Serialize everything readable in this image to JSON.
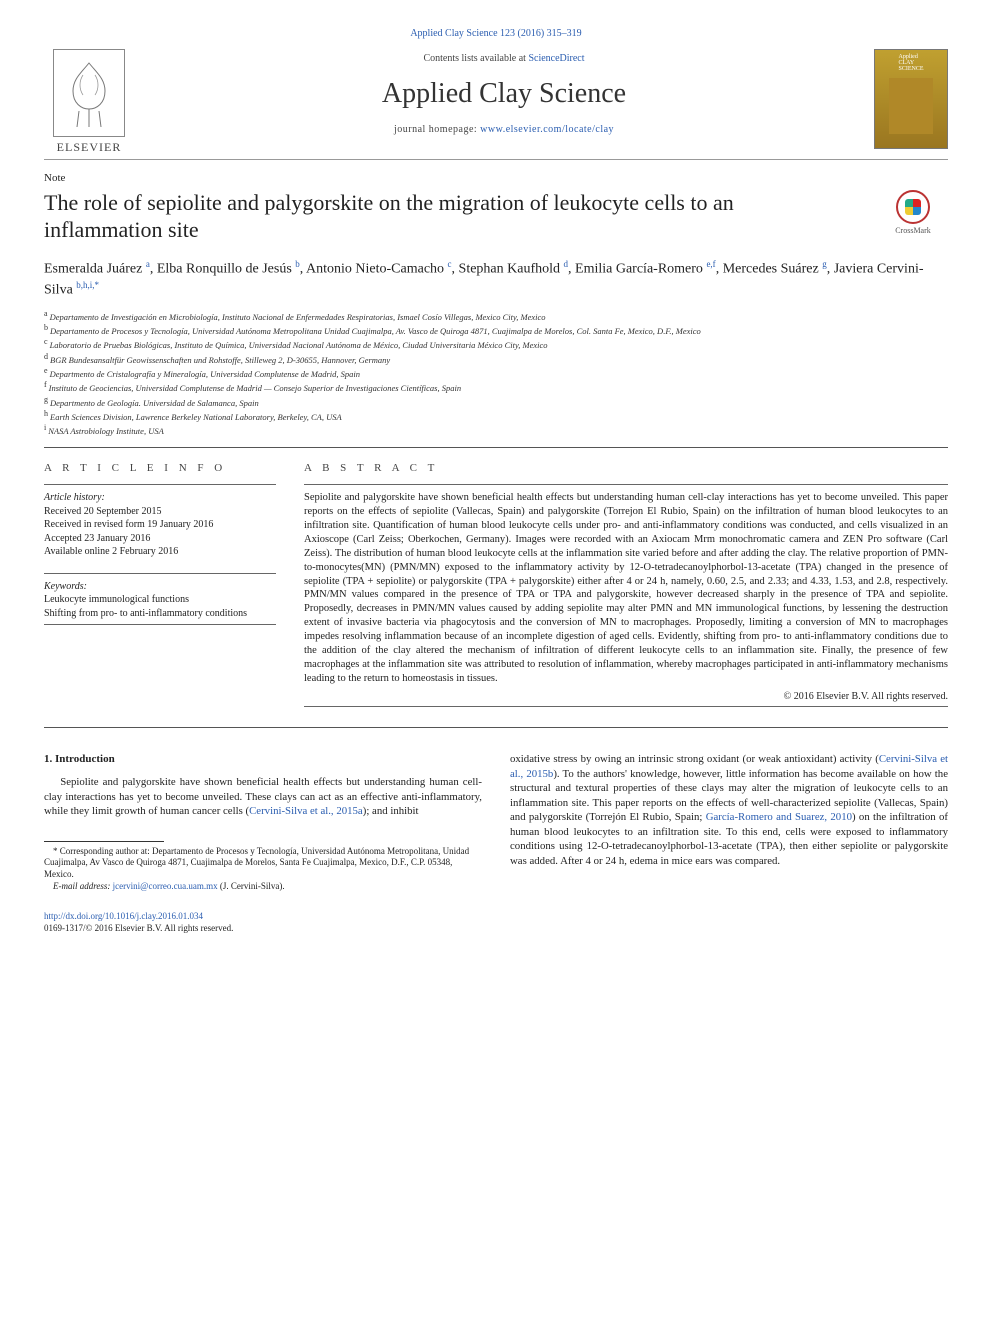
{
  "header": {
    "citation": "Applied Clay Science 123 (2016) 315–319",
    "contents_prefix": "Contents lists available at ",
    "contents_link": "ScienceDirect",
    "journal_title": "Applied Clay Science",
    "homepage_prefix": "journal homepage: ",
    "homepage_url": "www.elsevier.com/locate/clay",
    "elsevier_word": "ELSEVIER",
    "crossmark": "CrossMark"
  },
  "note_label": "Note",
  "title": "The role of sepiolite and palygorskite on the migration of leukocyte cells to an inflammation site",
  "authors_html": "Esmeralda Juárez <sup>a</sup>, Elba Ronquillo de Jesús <sup>b</sup>, Antonio Nieto-Camacho <sup>c</sup>, Stephan Kaufhold <sup>d</sup>, Emilia García-Romero <sup>e,f</sup>, Mercedes Suárez <sup>g</sup>, Javiera Cervini-Silva <sup>b,h,i,*</sup>",
  "affiliations": [
    {
      "sup": "a",
      "text": "Departamento de Investigación en Microbiología, Instituto Nacional de Enfermedades Respiratorias, Ismael Cosío Villegas, Mexico City, Mexico"
    },
    {
      "sup": "b",
      "text": "Departamento de Procesos y Tecnología, Universidad Autónoma Metropolitana Unidad Cuajimalpa, Av. Vasco de Quiroga 4871, Cuajimalpa de Morelos, Col. Santa Fe, Mexico, D.F., Mexico"
    },
    {
      "sup": "c",
      "text": "Laboratorio de Pruebas Biológicas, Instituto de Química, Universidad Nacional Autónoma de México, Ciudad Universitaria México City, Mexico"
    },
    {
      "sup": "d",
      "text": "BGR Bundesansaltfür Geowissenschaften und Rohstoffe, Stilleweg 2, D-30655, Hannover, Germany"
    },
    {
      "sup": "e",
      "text": "Departmento de Cristalografía y Mineralogía, Universidad Complutense de Madrid, Spain"
    },
    {
      "sup": "f",
      "text": "Instituto de Geociencias, Universidad Complutense de Madrid — Consejo Superior de Investigaciones Científicas, Spain"
    },
    {
      "sup": "g",
      "text": "Departmento de Geología. Universidad de Salamanca, Spain"
    },
    {
      "sup": "h",
      "text": "Earth Sciences Division, Lawrence Berkeley National Laboratory, Berkeley, CA, USA"
    },
    {
      "sup": "i",
      "text": "NASA Astrobiology Institute, USA"
    }
  ],
  "info": {
    "heading": "A R T I C L E   I N F O",
    "history_h": "Article history:",
    "history": [
      "Received 20 September 2015",
      "Received in revised form 19 January 2016",
      "Accepted 23 January 2016",
      "Available online 2 February 2016"
    ],
    "keywords_h": "Keywords:",
    "keywords": [
      "Leukocyte immunological functions",
      "Shifting from pro- to anti-inflammatory conditions"
    ]
  },
  "abstract": {
    "heading": "A B S T R A C T",
    "body": "Sepiolite and palygorskite have shown beneficial health effects but understanding human cell-clay interactions has yet to become unveiled. This paper reports on the effects of sepiolite (Vallecas, Spain) and palygorskite (Torrejon El Rubio, Spain) on the infiltration of human blood leukocytes to an infiltration site. Quantification of human blood leukocyte cells under pro- and anti-inflammatory conditions was conducted, and cells visualized in an Axioscope (Carl Zeiss; Oberkochen, Germany). Images were recorded with an Axiocam Mrm monochromatic camera and ZEN Pro software (Carl Zeiss). The distribution of human blood leukocyte cells at the inflammation site varied before and after adding the clay. The relative proportion of PMN-to-monocytes(MN) (PMN/MN) exposed to the inflammatory activity by 12-O-tetradecanoylphorbol-13-acetate (TPA) changed in the presence of sepiolite (TPA + sepiolite) or palygorskite (TPA + palygorskite) either after 4 or 24 h, namely, 0.60, 2.5, and 2.33; and 4.33, 1.53, and 2.8, respectively. PMN/MN values compared in the presence of TPA or TPA and palygorskite, however decreased sharply in the presence of TPA and sepiolite. Proposedly, decreases in PMN/MN values caused by adding sepiolite may alter PMN and MN immunological functions, by lessening the destruction extent of invasive bacteria via phagocytosis and the conversion of MN to macrophages. Proposedly, limiting a conversion of MN to macrophages impedes resolving inflammation because of an incomplete digestion of aged cells. Evidently, shifting from pro- to anti-inflammatory conditions due to the addition of the clay altered the mechanism of infiltration of different leukocyte cells to an inflammation site. Finally, the presence of few macrophages at the inflammation site was attributed to resolution of inflammation, whereby macrophages participated in anti-inflammatory mechanisms leading to the return to homeostasis in tissues.",
    "copyright": "© 2016 Elsevier B.V. All rights reserved."
  },
  "body": {
    "intro_h": "1. Introduction",
    "intro_p1_a": "Sepiolite and palygorskite have shown beneficial health effects but understanding human cell-clay interactions has yet to become unveiled. These clays can act as an effective anti-inflammatory, while they limit growth of human cancer cells (",
    "intro_p1_link1": "Cervini-Silva et al., 2015a",
    "intro_p1_b": "); and inhibit",
    "col2_a": "oxidative stress by owing an intrinsic strong oxidant (or weak antioxidant) activity (",
    "col2_link1": "Cervini-Silva et al., 2015b",
    "col2_b": "). To the authors' knowledge, however, little information has become available on how the structural and textural properties of these clays may alter the migration of leukocyte cells to an inflammation site. This paper reports on the effects of well-characterized sepiolite (Vallecas, Spain) and palygorskite (Torrejón El Rubio, Spain; ",
    "col2_link2": "García-Romero and Suarez, 2010",
    "col2_c": ") on the infiltration of human blood leukocytes to an infiltration site. To this end, cells were exposed to inflammatory conditions using 12-O-tetradecanoylphorbol-13-acetate (TPA), then either sepiolite or palygorskite was added. After 4 or 24 h, edema in mice ears was compared."
  },
  "footnote": {
    "corr_a": "* Corresponding author at: Departamento de Procesos y Tecnología, Universidad Autónoma Metropolitana, Unidad Cuajimalpa, Av Vasco de Quiroga 4871, Cuajimalpa de Morelos, Santa Fe Cuajimalpa, Mexico, D.F., C.P. 05348, Mexico.",
    "email_label": "E-mail address: ",
    "email": "jcervini@correo.cua.uam.mx",
    "email_paren": " (J. Cervini-Silva)."
  },
  "doi": {
    "url": "http://dx.doi.org/10.1016/j.clay.2016.01.034",
    "issn_line": "0169-1317/© 2016 Elsevier B.V. All rights reserved."
  },
  "colors": {
    "link": "#2a5db0"
  }
}
